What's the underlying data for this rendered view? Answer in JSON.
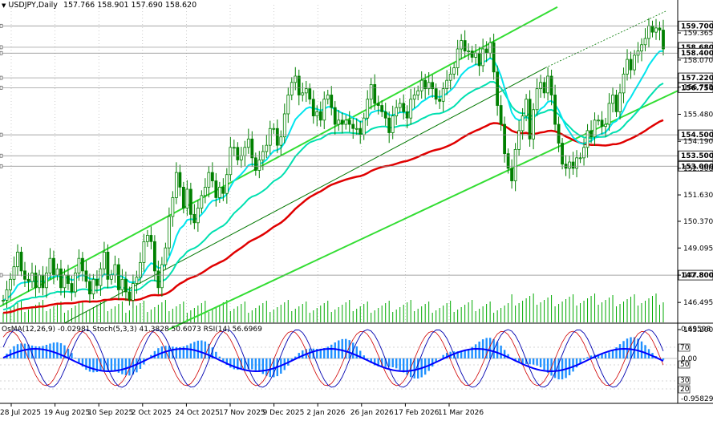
{
  "header": {
    "symbol": "USDJPY,Daily",
    "ohlc": "157.766 158.901 157.690 158.620"
  },
  "indicator_header": {
    "osma": "OsMA(12,26,9) -0.02981",
    "stoch": "Stoch(5,3,3) 41.3828 50.6073",
    "rsi": "RSI(14) 56.6969"
  },
  "chart_data": [
    {
      "type": "candlestick",
      "title": "USDJPY,Daily",
      "ylim": [
        145.2,
        160.4
      ],
      "y_tick_labels": [
        "159.365",
        "158.070",
        "156.775",
        "155.480",
        "154.190",
        "152.900",
        "151.630",
        "150.370",
        "149.095",
        "147.800",
        "146.495",
        "145.200"
      ],
      "price_markers": [
        {
          "value": "159.700",
          "style": "boxed",
          "color": "#000000"
        },
        {
          "value": "158.680",
          "style": "boxed",
          "color": "#000000"
        },
        {
          "value": "158.400",
          "style": "boxed",
          "color": "#000000"
        },
        {
          "value": "157.220",
          "style": "boxed",
          "color": "#000000"
        },
        {
          "value": "156.750",
          "style": "boxed",
          "color": "#000000"
        },
        {
          "value": "154.500",
          "style": "boxed",
          "color": "#000000"
        },
        {
          "value": "153.500",
          "style": "boxed",
          "color": "#000000"
        },
        {
          "value": "153.000",
          "style": "boxed",
          "color": "#000000"
        },
        {
          "value": "147.800",
          "style": "boxed",
          "color": "#000000"
        }
      ],
      "x_tick_labels": [
        "28 Jul 2025",
        "19 Aug 2025",
        "10 Sep 2025",
        "2 Oct 2025",
        "24 Oct 2025",
        "17 Nov 2025",
        "9 Dec 2025",
        "2 Jan 2026",
        "26 Jan 2026",
        "17 Feb 2026",
        "11 Mar 2026"
      ],
      "close_series": [
        146.6,
        147.1,
        147.6,
        148.2,
        148.9,
        148.0,
        147.6,
        147.5,
        147.9,
        147.2,
        147.8,
        147.2,
        147.9,
        148.6,
        147.8,
        148.1,
        147.2,
        147.8,
        147.4,
        147.0,
        147.9,
        148.6,
        148.0,
        147.5,
        146.9,
        147.6,
        147.3,
        148.1,
        148.9,
        147.6,
        147.8,
        148.3,
        147.1,
        147.6,
        147.0,
        146.6,
        147.4,
        147.7,
        148.4,
        149.4,
        149.7,
        149.4,
        148.0,
        147.2,
        148.3,
        149.1,
        150.6,
        151.5,
        152.7,
        152.0,
        151.0,
        151.9,
        150.7,
        150.3,
        151.0,
        151.6,
        152.0,
        152.7,
        152.3,
        151.5,
        152.0,
        151.7,
        152.6,
        153.9,
        153.9,
        153.3,
        153.5,
        153.9,
        154.3,
        153.4,
        152.8,
        153.3,
        153.7,
        154.0,
        154.8,
        154.8,
        154.0,
        154.4,
        155.5,
        156.4,
        157.0,
        157.3,
        156.4,
        156.5,
        156.7,
        156.2,
        155.4,
        155.6,
        155.2,
        156.2,
        156.4,
        155.8,
        155.0,
        155.2,
        155.0,
        155.2,
        155.0,
        154.8,
        154.8,
        154.5,
        155.3,
        156.2,
        156.9,
        156.0,
        155.9,
        155.6,
        155.3,
        154.6,
        155.4,
        155.8,
        156.0,
        155.6,
        155.3,
        156.2,
        156.4,
        156.6,
        157.1,
        156.7,
        157.0,
        156.7,
        156.2,
        156.1,
        156.7,
        157.1,
        157.4,
        157.7,
        158.6,
        159.0,
        158.5,
        158.5,
        158.2,
        158.4,
        157.8,
        158.6,
        158.4,
        158.9,
        157.5,
        155.9,
        155.0,
        153.6,
        152.9,
        152.3,
        153.8,
        154.7,
        155.4,
        156.2,
        154.3,
        155.7,
        156.7,
        157.0,
        156.5,
        157.3,
        156.4,
        155.0,
        154.1,
        153.1,
        152.9,
        153.2,
        152.9,
        153.4,
        153.4,
        153.9,
        154.7,
        154.4,
        155.2,
        155.2,
        154.9,
        155.0,
        156.0,
        156.4,
        155.6,
        156.5,
        157.4,
        158.1,
        157.6,
        158.3,
        158.5,
        158.8,
        159.1,
        159.7,
        159.4,
        159.6,
        159.5,
        158.6
      ]
    },
    {
      "type": "histogram+line",
      "title": "OsMA(12,26,9) -0.02981  Stoch(5,3,3) 41.3828 50.6073  RSI(14) 56.6969",
      "ylim": [
        -0.958,
        0.696
      ],
      "left_scale": [
        "0.69598",
        "-0.95829"
      ],
      "right_levels": [
        "70",
        "50",
        "30",
        "20"
      ],
      "zero_label": "0.00"
    }
  ],
  "colors": {
    "background": "#ffffff",
    "candle": "#008000",
    "ema_red": "#e00000",
    "ema_cyan": "#00e5ee",
    "ema_teal": "#00e0b0",
    "channel": "#33dd33",
    "channel_mid": "#007700",
    "volume": "#00aa00",
    "osma": "#1e90ff",
    "stoch_main": "#0000b0",
    "stoch_signal": "#d00000",
    "rsi": "#0000ff",
    "grid": "#aaaaaa",
    "axis": "#000000"
  }
}
